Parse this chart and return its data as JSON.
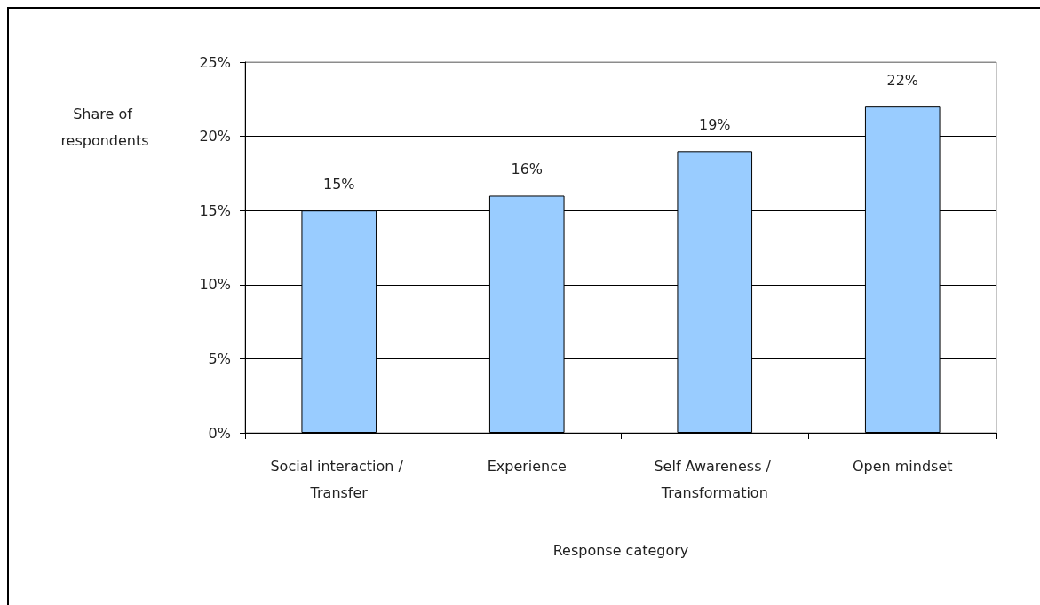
{
  "chart_data": {
    "type": "bar",
    "categories": [
      "Social interaction / Transfer",
      "Experience",
      "Self Awareness / Transformation",
      "Open mindset"
    ],
    "values": [
      15,
      16,
      19,
      22
    ],
    "value_labels": [
      "15%",
      "16%",
      "19%",
      "22%"
    ],
    "color": "#99ccff",
    "xlabel": "Response category",
    "ylabel": "Share of respondents",
    "ylim": [
      0,
      25
    ],
    "yticks": [
      {
        "value": 0,
        "label": "0%"
      },
      {
        "value": 5,
        "label": "5%"
      },
      {
        "value": 10,
        "label": "10%"
      },
      {
        "value": 15,
        "label": "15%"
      },
      {
        "value": 20,
        "label": "20%"
      },
      {
        "value": 25,
        "label": "25%"
      }
    ],
    "grid": "y"
  }
}
